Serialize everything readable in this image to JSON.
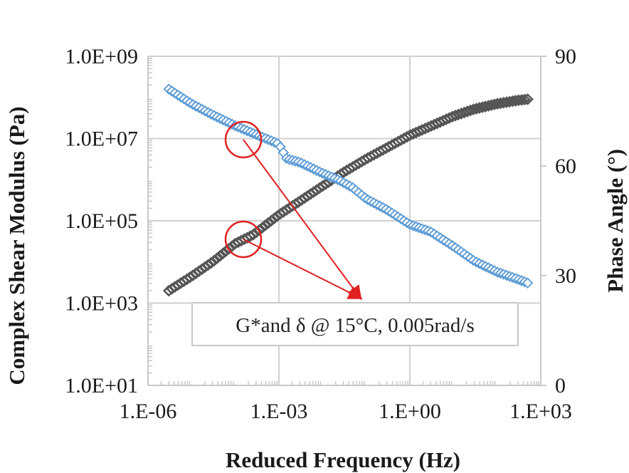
{
  "chart_data": {
    "type": "scatter",
    "xlabel": "Reduced Frequency (Hz)",
    "ylabel": "Complex Shear Modulus (Pa)",
    "y2label": "Phase Angle (°)",
    "x_scale": "log",
    "y_scale": "log",
    "xlim": [
      1e-06,
      1000
    ],
    "ylim": [
      10,
      1000000000.0
    ],
    "y2lim": [
      0,
      90
    ],
    "x_tick_labels": [
      "1.E-06",
      "1.E-03",
      "1.E+00",
      "1.E+03"
    ],
    "y_tick_labels": [
      "1.0E+01",
      "1.0E+03",
      "1.0E+05",
      "1.0E+07",
      "1.0E+09"
    ],
    "y2_tick_labels": [
      "0",
      "30",
      "60",
      "90"
    ],
    "grid": true,
    "annotation": "G*and δ @ 15°C, 0.005rad/s",
    "colors": {
      "modulus": "#555555",
      "phase": "#5b9bd5",
      "highlight": "#e02020"
    },
    "series": [
      {
        "axis": "left",
        "marker": "diamond",
        "color": "#555555",
        "points": [
          [
            3e-06,
            2000.0
          ],
          [
            1e-05,
            4500.0
          ],
          [
            3e-05,
            10000.0
          ],
          [
            0.0001,
            28000.0
          ],
          [
            0.00025,
            45000.0
          ],
          [
            0.001,
            140000.0
          ],
          [
            0.003,
            300000.0
          ],
          [
            0.01,
            700000.0
          ],
          [
            0.03,
            1500000.0
          ],
          [
            0.1,
            3200000.0
          ],
          [
            0.3,
            6000000.0
          ],
          [
            1,
            12000000.0
          ],
          [
            3,
            20000000.0
          ],
          [
            10,
            35000000.0
          ],
          [
            30,
            52000000.0
          ],
          [
            100,
            70000000.0
          ],
          [
            300,
            85000000.0
          ],
          [
            500,
            90000000.0
          ]
        ]
      },
      {
        "axis": "right",
        "marker": "diamond",
        "color": "#5b9bd5",
        "points": [
          [
            3e-06,
            81
          ],
          [
            1e-05,
            77
          ],
          [
            3e-05,
            74
          ],
          [
            0.0001,
            71
          ],
          [
            0.00025,
            69
          ],
          [
            0.001,
            66
          ],
          [
            0.0015,
            62
          ],
          [
            0.003,
            61
          ],
          [
            0.01,
            58
          ],
          [
            0.025,
            56
          ],
          [
            0.05,
            54
          ],
          [
            0.1,
            51
          ],
          [
            0.3,
            48
          ],
          [
            1,
            44
          ],
          [
            3,
            42
          ],
          [
            10,
            38
          ],
          [
            30,
            34
          ],
          [
            100,
            31
          ],
          [
            300,
            29
          ],
          [
            500,
            28
          ]
        ]
      }
    ]
  }
}
